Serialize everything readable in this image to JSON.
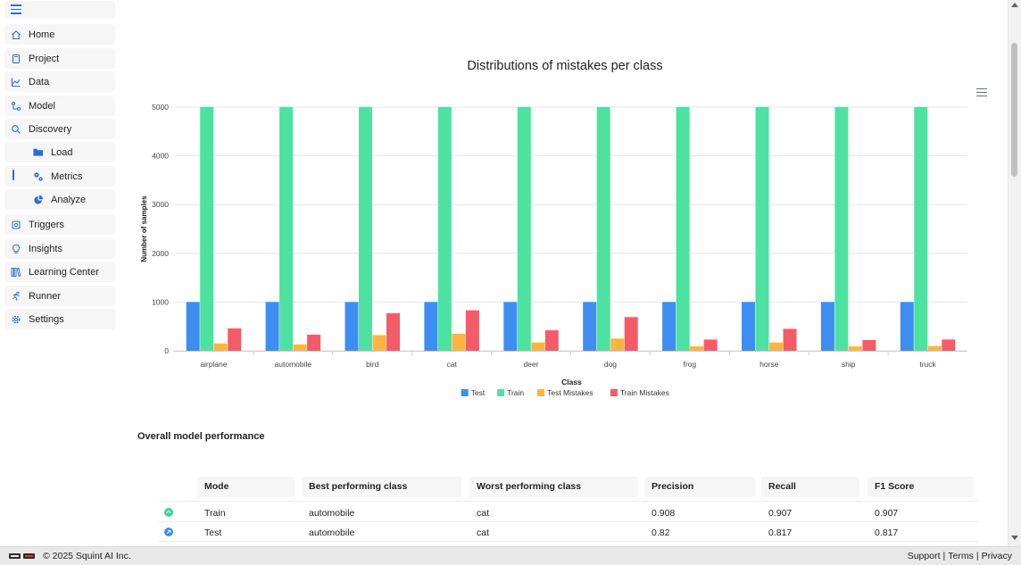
{
  "sidebar": {
    "items": [
      {
        "label": "Home",
        "icon": "home-icon"
      },
      {
        "label": "Project",
        "icon": "project-icon"
      },
      {
        "label": "Data",
        "icon": "data-icon"
      },
      {
        "label": "Model",
        "icon": "model-icon"
      },
      {
        "label": "Discovery",
        "icon": "discovery-icon"
      },
      {
        "label": "Load",
        "icon": "folder-icon"
      },
      {
        "label": "Metrics",
        "icon": "gears-icon"
      },
      {
        "label": "Analyze",
        "icon": "pie-chart-icon"
      },
      {
        "label": "Triggers",
        "icon": "triggers-icon"
      },
      {
        "label": "Insights",
        "icon": "lightbulb-icon"
      },
      {
        "label": "Learning Center",
        "icon": "books-icon"
      },
      {
        "label": "Runner",
        "icon": "runner-icon"
      },
      {
        "label": "Settings",
        "icon": "gear-icon"
      }
    ],
    "active": "Metrics"
  },
  "chart_data": {
    "type": "bar",
    "title": "Distributions of mistakes per class",
    "xlabel": "Class",
    "ylabel": "Number of samples",
    "ylim": [
      0,
      5000
    ],
    "yticks": [
      0,
      1000,
      2000,
      3000,
      4000,
      5000
    ],
    "grid": true,
    "legend_position": "bottom",
    "categories": [
      "airplane",
      "automobile",
      "bird",
      "cat",
      "deer",
      "dog",
      "frog",
      "horse",
      "ship",
      "truck"
    ],
    "series": [
      {
        "name": "Test",
        "color": "#3d8ef0",
        "values": [
          1000,
          1000,
          1000,
          1000,
          1000,
          1000,
          1000,
          1000,
          1000,
          1000
        ]
      },
      {
        "name": "Train",
        "color": "#4de2a0",
        "values": [
          5000,
          5000,
          5000,
          5000,
          5000,
          5000,
          5000,
          5000,
          5000,
          5000
        ]
      },
      {
        "name": "Test Mistakes",
        "color": "#fbb540",
        "values": [
          150,
          130,
          320,
          350,
          170,
          250,
          90,
          170,
          90,
          100
        ]
      },
      {
        "name": "Train Mistakes",
        "color": "#f45b69",
        "values": [
          460,
          330,
          770,
          830,
          420,
          690,
          230,
          450,
          220,
          230
        ]
      }
    ]
  },
  "performance": {
    "heading": "Overall model performance",
    "columns": [
      "Mode",
      "Best performing class",
      "Worst performing class",
      "Precision",
      "Recall",
      "F1 Score"
    ],
    "rows": [
      {
        "mode": "Train",
        "best": "automobile",
        "worst": "cat",
        "precision": "0.908",
        "recall": "0.907",
        "f1": "0.907",
        "color": "#3ad69a"
      },
      {
        "mode": "Test",
        "best": "automobile",
        "worst": "cat",
        "precision": "0.82",
        "recall": "0.817",
        "f1": "0.817",
        "color": "#3d8ef0"
      }
    ]
  },
  "footer": {
    "copyright": "© 2025 Squint AI Inc.",
    "links": [
      "Support",
      "Terms",
      "Privacy"
    ]
  }
}
